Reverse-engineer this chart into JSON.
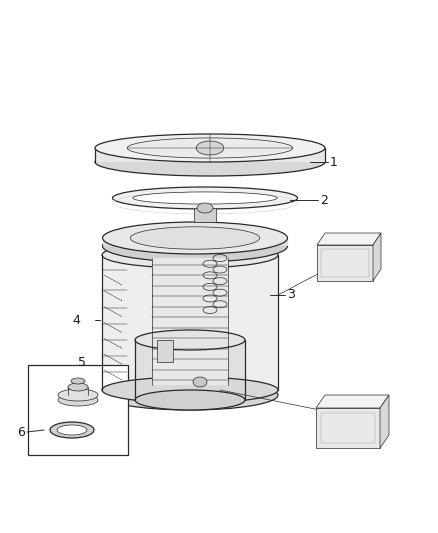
{
  "background_color": "#ffffff",
  "line_color": "#2a2a2a",
  "label_color": "#1a1a1a",
  "figsize": [
    4.38,
    5.33
  ],
  "dpi": 100,
  "lw_main": 0.9,
  "lw_detail": 0.5,
  "lw_thin": 0.35
}
